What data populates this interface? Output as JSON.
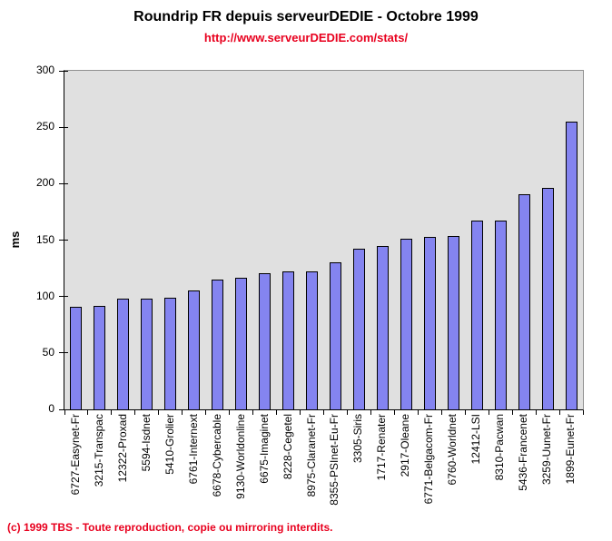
{
  "title": "Roundrip FR depuis serveurDEDIE - Octobre 1999",
  "subtitle_url": "http://www.serveurDEDIE.com/stats/",
  "footer_copyright": "(c) 1999 TBS - Toute reproduction, copie ou mirroring interdits.",
  "colors": {
    "bar_fill": "#8484f0",
    "bar_border": "#000000",
    "plot_background": "#e0e0e0",
    "plot_border_gray": "#909090",
    "axis_black": "#000000",
    "accent_red": "#e8001e"
  },
  "chart_data": {
    "type": "bar",
    "title": "Roundrip FR depuis serveurDEDIE - Octobre 1999",
    "subtitle": "http://www.serveurDEDIE.com/stats/",
    "xlabel": "",
    "ylabel": "ms",
    "ylim": [
      0,
      300
    ],
    "yticks": [
      0,
      50,
      100,
      150,
      200,
      250,
      300
    ],
    "grid": false,
    "legend_position": "none",
    "categories": [
      "6727-Easynet-Fr",
      "3215-Transpac",
      "12322-Proxad",
      "5594-Isdnet",
      "5410-Grolier",
      "6761-Internext",
      "6678-Cybercable",
      "9130-Worldonline",
      "6675-Imaginet",
      "8228-Cegetel",
      "8975-Claranet-Fr",
      "8355-PSInet-Eu-Fr",
      "3305-Siris",
      "1717-Renater",
      "2917-Oleane",
      "6771-Belgacom-Fr",
      "6760-Worldnet",
      "12412-LSI",
      "8310-Pacwan",
      "5436-Francenet",
      "3259-Uunet-Fr",
      "1899-Eunet-Fr"
    ],
    "values": [
      91,
      92,
      98,
      98,
      99,
      105,
      115,
      117,
      121,
      122,
      122,
      130,
      142,
      145,
      151,
      153,
      154,
      167,
      167,
      191,
      196,
      255
    ]
  }
}
